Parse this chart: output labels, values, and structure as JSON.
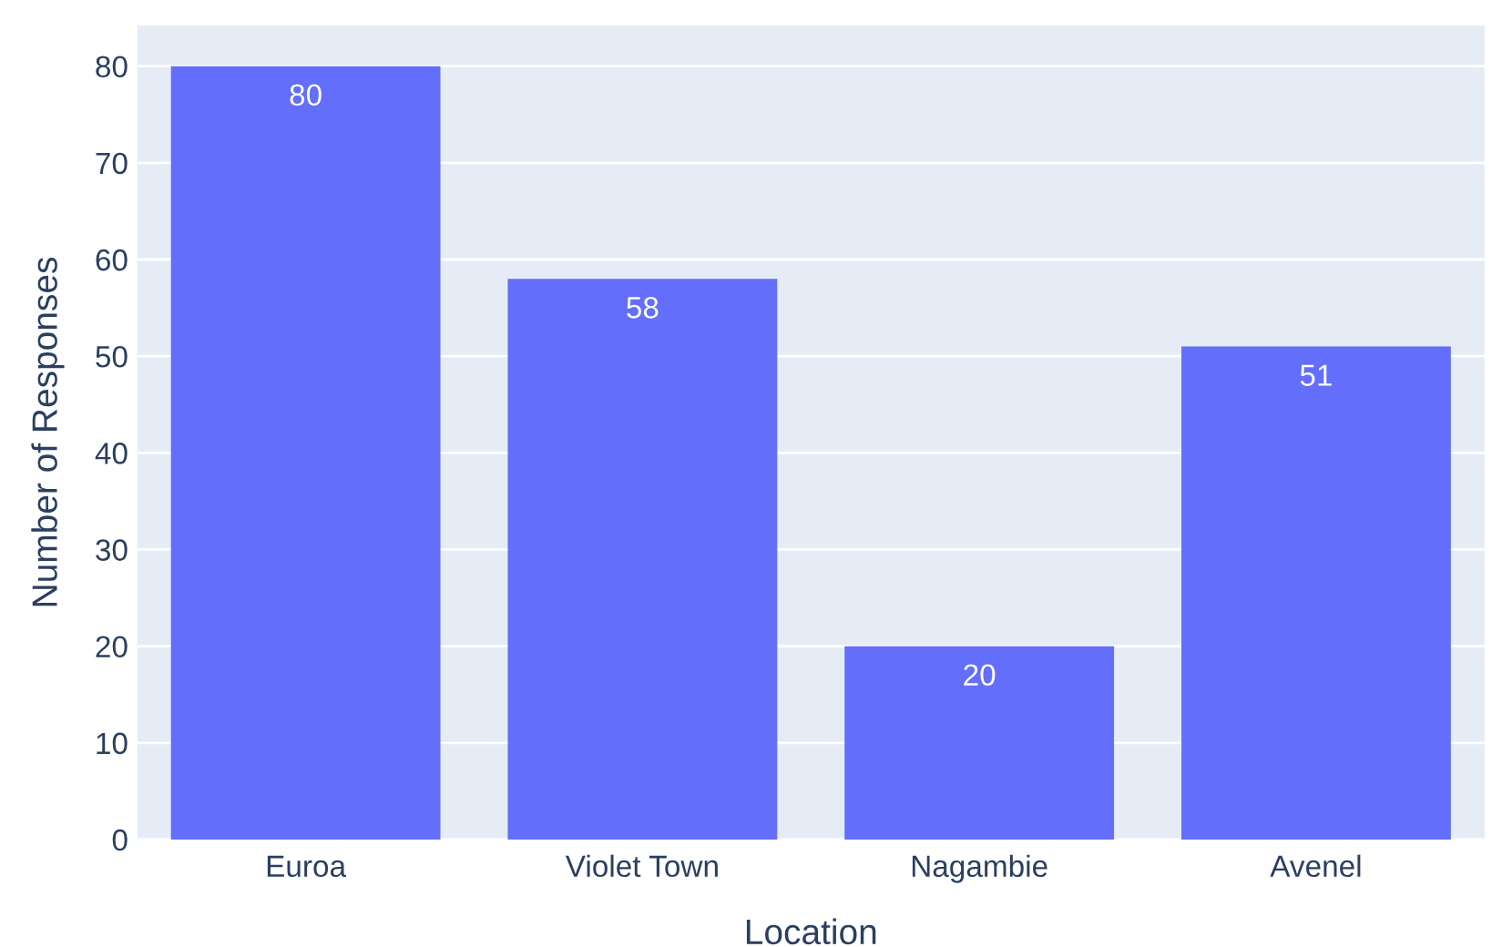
{
  "chart_data": {
    "type": "bar",
    "xlabel": "Location",
    "ylabel": "Number of Responses",
    "categories": [
      "Euroa",
      "Violet Town",
      "Nagambie",
      "Avenel"
    ],
    "values": [
      80,
      58,
      20,
      51
    ],
    "color": "#636efa",
    "ylim": [
      0,
      84.2
    ],
    "yticks": [
      0,
      10,
      20,
      30,
      40,
      50,
      60,
      70,
      80
    ],
    "grid": "y",
    "data_labels": true,
    "legend": false
  }
}
